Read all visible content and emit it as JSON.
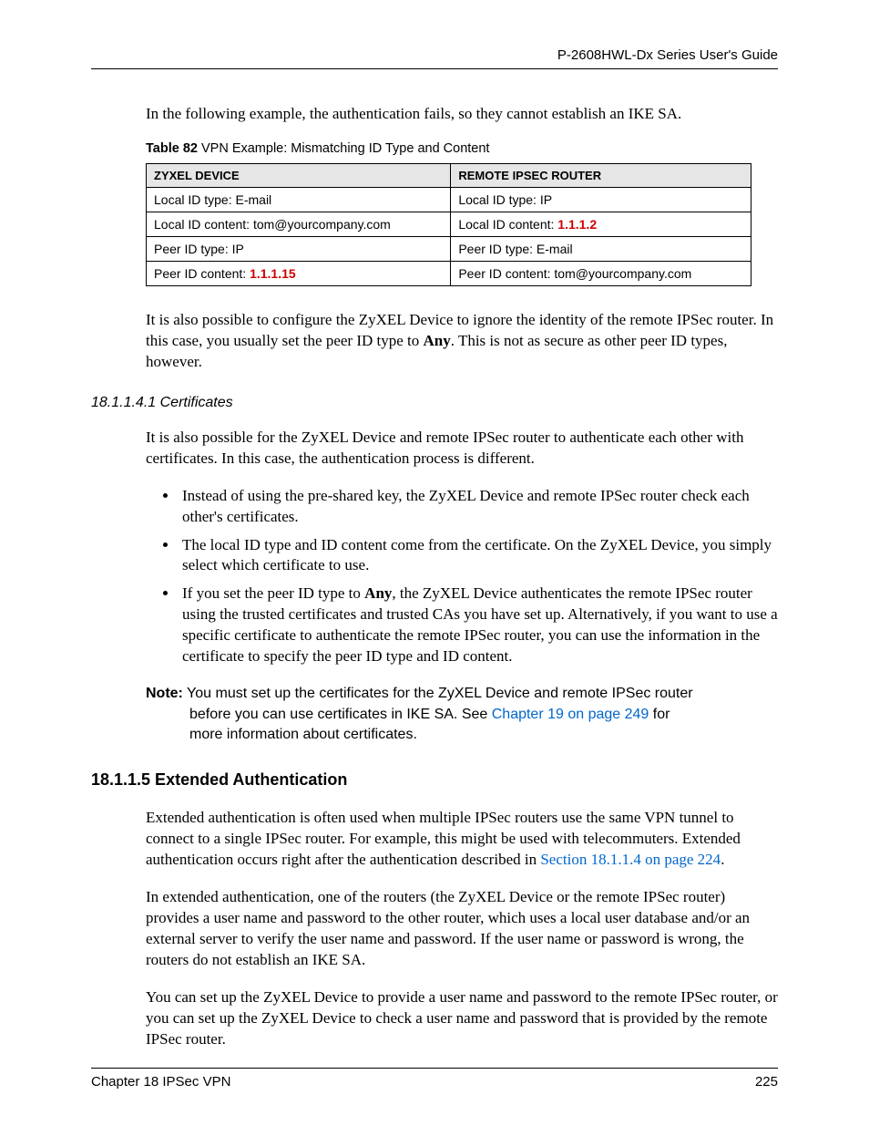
{
  "header": {
    "title": "P-2608HWL-Dx Series User's Guide"
  },
  "intro_paragraph": "In the following example, the authentication fails, so they cannot establish an IKE SA.",
  "table": {
    "caption_label": "Table 82",
    "caption_text": "   VPN Example: Mismatching ID Type and Content",
    "header_left": "ZYXEL DEVICE",
    "header_right": "REMOTE IPSEC ROUTER",
    "rows": [
      {
        "left_plain": "Local ID type: E-mail",
        "right_plain": "Local ID type: IP"
      },
      {
        "left_plain": "Local ID content: tom@yourcompany.com",
        "right_label": "Local ID content: ",
        "right_red": "1.1.1.2"
      },
      {
        "left_plain": "Peer ID type: IP",
        "right_plain": "Peer ID type: E-mail"
      },
      {
        "left_label": "Peer ID content: ",
        "left_red": "1.1.1.15",
        "right_plain": "Peer ID content: tom@yourcompany.com"
      }
    ]
  },
  "para_after_table": {
    "pre": "It is also possible to configure the ZyXEL Device to ignore the identity of the remote IPSec router. In this case, you usually set the peer ID type to ",
    "bold": "Any",
    "post": ". This is not as secure as other peer ID types, however."
  },
  "certs": {
    "heading": "18.1.1.4.1  Certificates",
    "intro": "It is also possible for the ZyXEL Device and remote IPSec router to authenticate each other with certificates. In this case, the authentication process is different.",
    "bullet1": "Instead of using the pre-shared key, the ZyXEL Device and remote IPSec router check each other's certificates.",
    "bullet2": "The local ID type and ID content come from the certificate. On the ZyXEL Device, you simply select which certificate to use.",
    "bullet3_pre": "If you set the peer ID type to ",
    "bullet3_bold": "Any",
    "bullet3_post": ", the ZyXEL Device authenticates the remote IPSec router using the trusted certificates and trusted CAs you have set up. Alternatively, if you want to use a specific certificate to authenticate the remote IPSec router, you can use the information in the certificate to specify the peer ID type and ID content."
  },
  "note": {
    "label": "Note:",
    "line1": " You must set up the certificates for the ZyXEL Device and remote IPSec router ",
    "line2a": "before you can use certificates in IKE SA. See ",
    "link": "Chapter 19 on page 249",
    "line2b": " for ",
    "line3": "more information about certificates."
  },
  "ext_auth": {
    "heading": "18.1.1.5  Extended Authentication",
    "p1_pre": "Extended authentication is often used when multiple IPSec routers use the same VPN tunnel to connect to a single IPSec router. For example, this might be used with telecommuters. Extended authentication occurs right after the authentication described in ",
    "p1_link": "Section 18.1.1.4 on page 224",
    "p1_post": ".",
    "p2": "In extended authentication, one of the routers (the ZyXEL Device or the remote IPSec router) provides a user name and password to the other router, which uses a local user database and/or an external server to verify the user name and password. If the user name or password is wrong, the routers do not establish an IKE SA.",
    "p3": "You can set up the ZyXEL Device to provide a user name and password to the remote IPSec router, or you can set up the ZyXEL Device to check a user name and password that is provided by the remote IPSec router."
  },
  "footer": {
    "chapter": "Chapter 18 IPSec VPN",
    "page": "225"
  }
}
